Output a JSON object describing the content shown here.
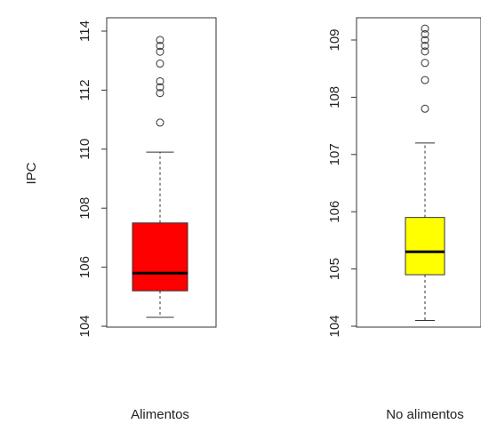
{
  "chart_data": [
    {
      "type": "boxplot",
      "ylabel": "IPC",
      "category": "Alimentos",
      "fill": "#ff0000",
      "ylim": [
        104,
        114
      ],
      "yticks": [
        104,
        106,
        108,
        110,
        112,
        114
      ],
      "box": {
        "whisker_low": 104.3,
        "q1": 105.2,
        "median": 105.8,
        "q3": 107.5,
        "whisker_high": 109.9
      },
      "outliers": [
        110.9,
        111.9,
        112.1,
        112.3,
        112.9,
        113.3,
        113.5,
        113.7
      ]
    },
    {
      "type": "boxplot",
      "ylabel": "",
      "category": "No alimentos",
      "fill": "#ffff00",
      "ylim": [
        104,
        109
      ],
      "yticks": [
        104,
        105,
        106,
        107,
        108,
        109
      ],
      "box": {
        "whisker_low": 104.1,
        "q1": 104.9,
        "median": 105.3,
        "q3": 105.9,
        "whisker_high": 107.2
      },
      "outliers": [
        107.8,
        108.3,
        108.6,
        108.8,
        108.9,
        109.0,
        109.1,
        109.2
      ]
    }
  ]
}
